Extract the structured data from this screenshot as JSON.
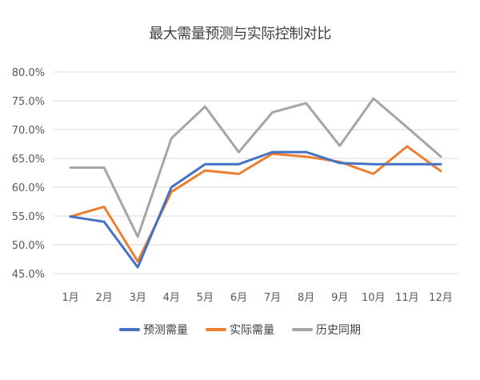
{
  "title": "最大需量预测与实际控制对比",
  "legend": [
    {
      "label": "预测需量",
      "color": "#4472C4"
    },
    {
      "label": "实际需量",
      "color": "#ED7D31"
    },
    {
      "label": "历史同期",
      "color": "#A5A5A5"
    }
  ],
  "chart_data": {
    "type": "line",
    "title": "最大需量预测与实际控制对比",
    "xlabel": "",
    "ylabel": "",
    "categories": [
      "1月",
      "2月",
      "3月",
      "4月",
      "5月",
      "6月",
      "7月",
      "8月",
      "9月",
      "10月",
      "11月",
      "12月"
    ],
    "yticks": [
      "45.0%",
      "50.0%",
      "55.0%",
      "60.0%",
      "65.0%",
      "70.0%",
      "75.0%",
      "80.0%"
    ],
    "ylim": [
      45,
      80
    ],
    "grid": true,
    "legend_position": "bottom",
    "series": [
      {
        "name": "预测需量",
        "color": "#4472C4",
        "values": [
          54.9,
          54.0,
          46.1,
          60.0,
          64.0,
          64.0,
          66.1,
          66.1,
          64.2,
          64.0,
          64.0,
          64.0
        ]
      },
      {
        "name": "实际需量",
        "color": "#ED7D31",
        "values": [
          54.9,
          56.6,
          47.1,
          59.2,
          62.9,
          62.3,
          65.8,
          65.3,
          64.4,
          62.3,
          67.1,
          62.8
        ]
      },
      {
        "name": "历史同期",
        "color": "#A5A5A5",
        "values": [
          63.4,
          63.4,
          51.4,
          68.5,
          74.0,
          66.1,
          73.0,
          74.6,
          67.2,
          75.4,
          70.4,
          65.3
        ]
      }
    ]
  }
}
